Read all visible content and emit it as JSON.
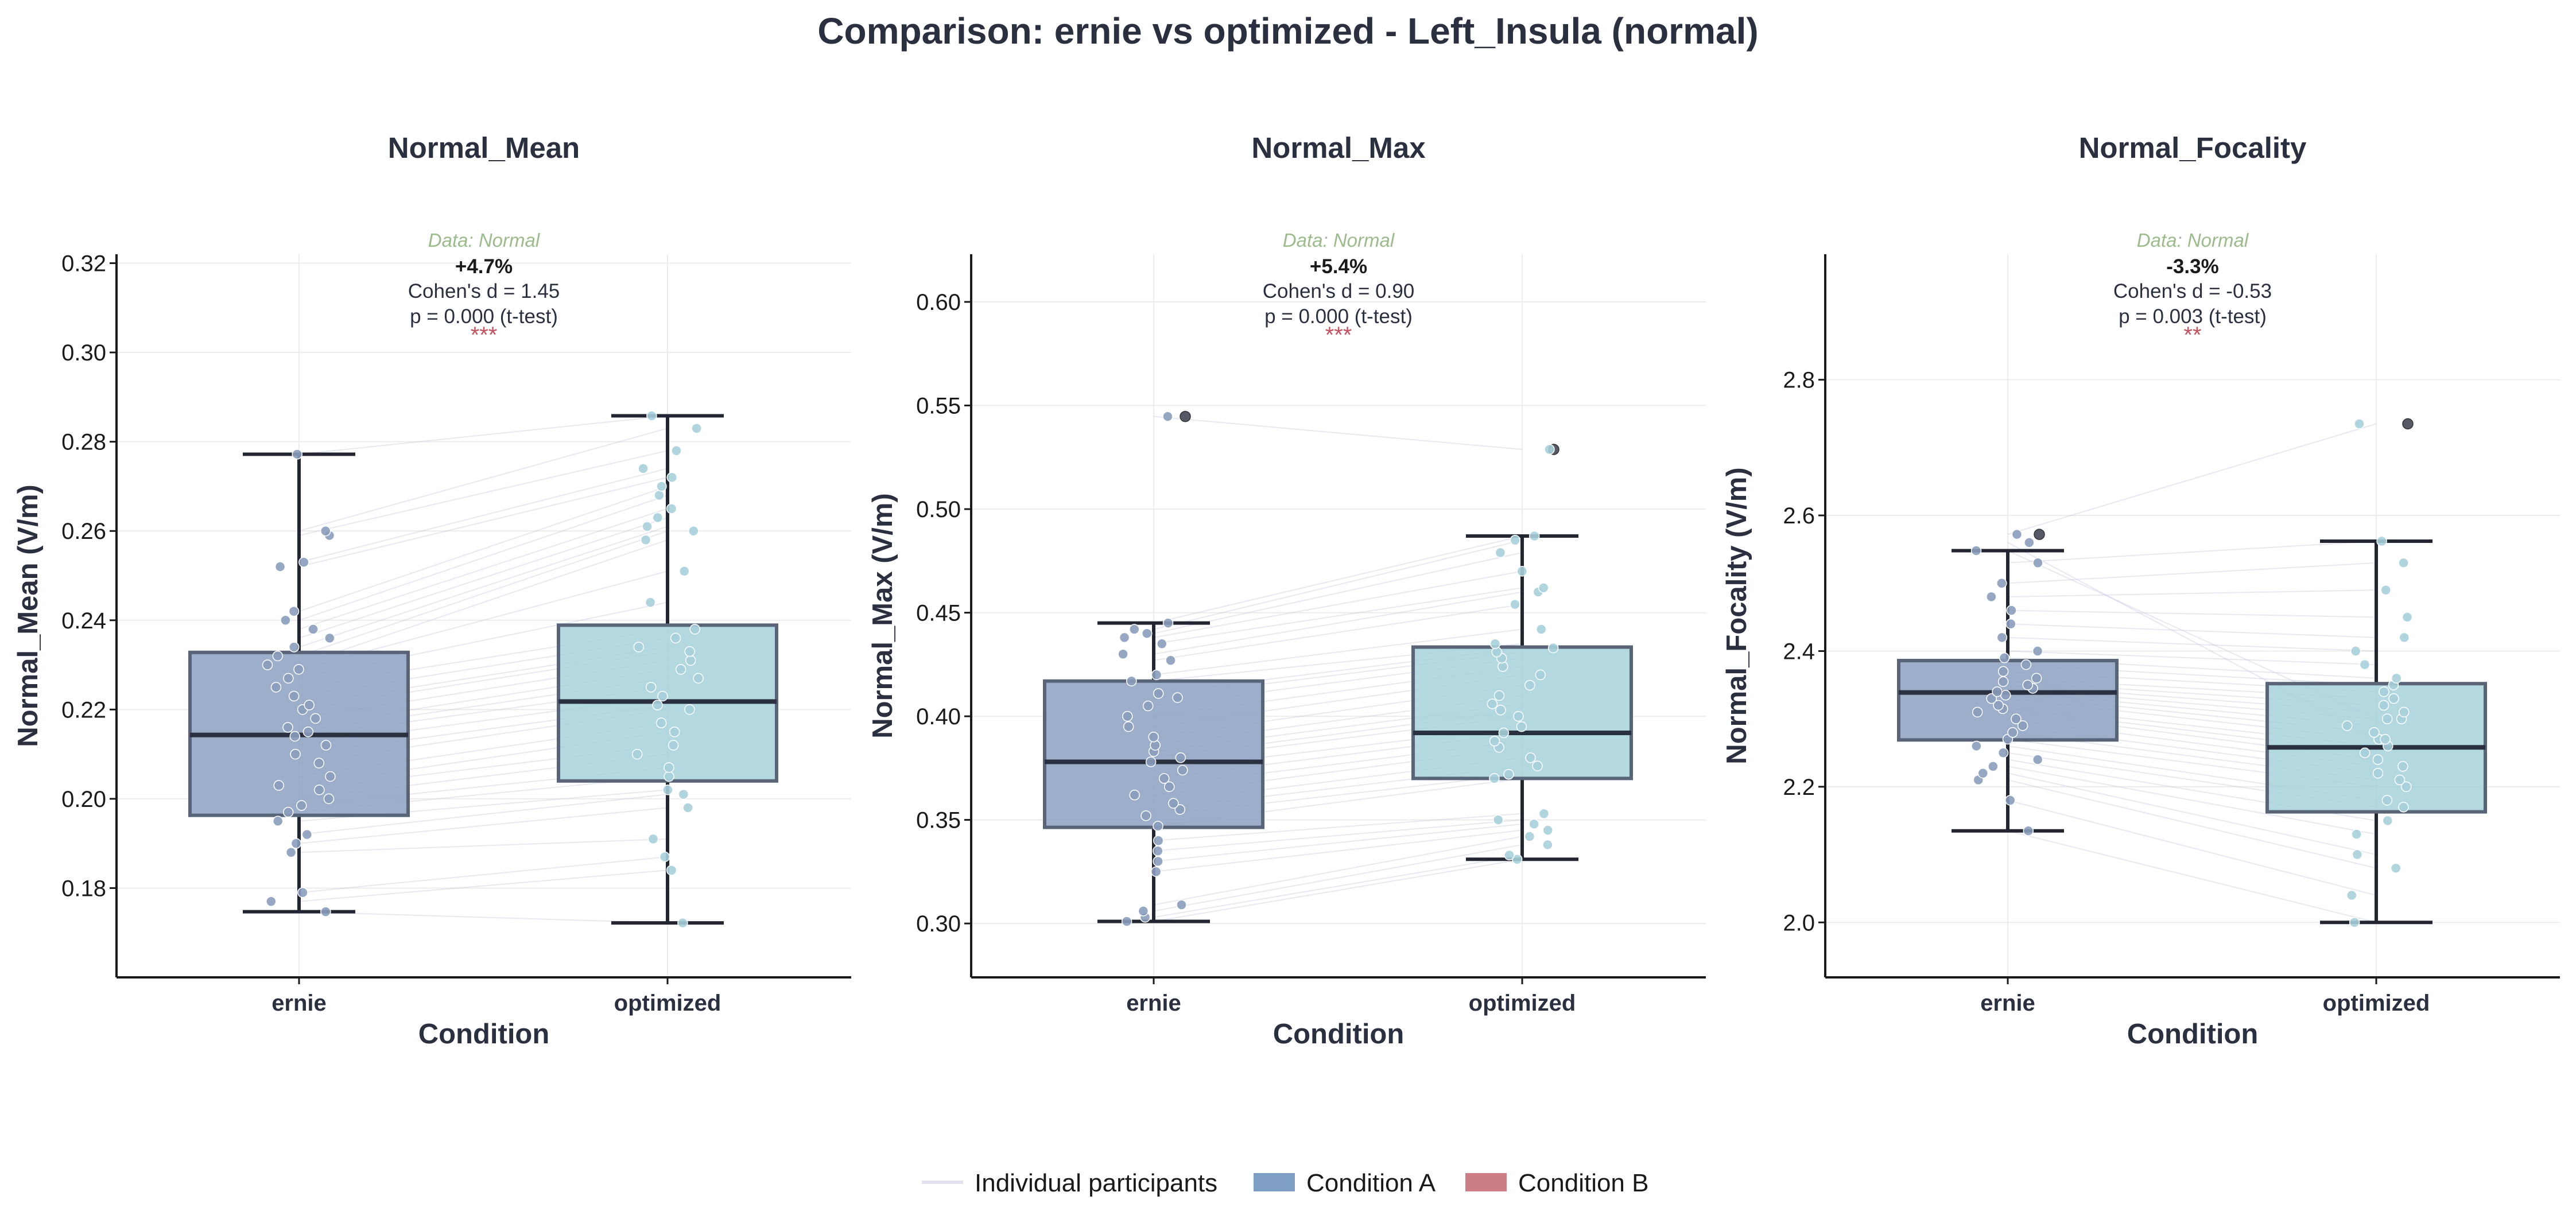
{
  "figure": {
    "title": "Comparison: ernie vs optimized - Left_Insula (normal)"
  },
  "colors": {
    "condition_a": "#8fa3c3",
    "condition_b": "#a9d3dc",
    "condition_a_edge": "#5a6478",
    "condition_b_edge": "#5a6478",
    "pair_line": "#c9cde0",
    "median": "#2b3040",
    "sig": "#c6525e",
    "data_source": "#9cbb8b",
    "legend_line": "#e2e2ee",
    "legend_a": "#7f9ec4",
    "legend_b": "#cd7d86"
  },
  "legend": {
    "items": [
      {
        "label": "Individual participants",
        "kind": "line",
        "color": "#e2e2ee"
      },
      {
        "label": "Condition A",
        "kind": "patch",
        "color": "#7f9ec4"
      },
      {
        "label": "Condition B",
        "kind": "patch",
        "color": "#cd7d86"
      }
    ]
  },
  "chart_data": [
    {
      "type": "box",
      "title": "Normal_Mean",
      "xlabel": "Condition",
      "ylabel": "Normal_Mean (V/m)",
      "categories": [
        "ernie",
        "optimized"
      ],
      "ylim": [
        0.16,
        0.322
      ],
      "yticks": [
        0.18,
        0.2,
        0.22,
        0.24,
        0.26,
        0.28,
        0.3,
        0.32
      ],
      "tick_decimals": 2,
      "stats": {
        "data_source": "Data: Normal",
        "percent_change": "+4.7%",
        "effect_size": "Cohen's d = 1.45",
        "p_value": "p = 0.000 (t-test)",
        "significance": "***"
      },
      "boxes": [
        {
          "name": "ernie",
          "q1": 0.1963,
          "median": 0.2143,
          "q3": 0.2328,
          "whisker_low": 0.1747,
          "whisker_high": 0.2772,
          "outliers": []
        },
        {
          "name": "optimized",
          "q1": 0.204,
          "median": 0.2218,
          "q3": 0.2389,
          "whisker_low": 0.1722,
          "whisker_high": 0.2858,
          "outliers": []
        }
      ],
      "participants": {
        "ernie": [
          0.1747,
          0.177,
          0.179,
          0.188,
          0.19,
          0.192,
          0.195,
          0.197,
          0.1985,
          0.2,
          0.202,
          0.203,
          0.205,
          0.208,
          0.21,
          0.212,
          0.214,
          0.215,
          0.216,
          0.218,
          0.22,
          0.221,
          0.223,
          0.225,
          0.227,
          0.229,
          0.23,
          0.232,
          0.234,
          0.236,
          0.238,
          0.24,
          0.242,
          0.252,
          0.253,
          0.259,
          0.26,
          0.2772
        ],
        "optimized": [
          0.1722,
          0.184,
          0.187,
          0.191,
          0.198,
          0.201,
          0.202,
          0.205,
          0.207,
          0.21,
          0.212,
          0.215,
          0.217,
          0.22,
          0.221,
          0.223,
          0.225,
          0.227,
          0.229,
          0.231,
          0.233,
          0.234,
          0.236,
          0.238,
          0.244,
          0.251,
          0.258,
          0.26,
          0.261,
          0.263,
          0.265,
          0.268,
          0.27,
          0.272,
          0.274,
          0.278,
          0.283,
          0.2858
        ]
      }
    },
    {
      "type": "box",
      "title": "Normal_Max",
      "xlabel": "Condition",
      "ylabel": "Normal_Max (V/m)",
      "categories": [
        "ernie",
        "optimized"
      ],
      "ylim": [
        0.274,
        0.623
      ],
      "yticks": [
        0.3,
        0.35,
        0.4,
        0.45,
        0.5,
        0.55,
        0.6
      ],
      "tick_decimals": 2,
      "stats": {
        "data_source": "Data: Normal",
        "percent_change": "+5.4%",
        "effect_size": "Cohen's d = 0.90",
        "p_value": "p = 0.000 (t-test)",
        "significance": "***"
      },
      "boxes": [
        {
          "name": "ernie",
          "q1": 0.3464,
          "median": 0.378,
          "q3": 0.417,
          "whisker_low": 0.301,
          "whisker_high": 0.445,
          "outliers": [
            0.5447
          ]
        },
        {
          "name": "optimized",
          "q1": 0.37,
          "median": 0.392,
          "q3": 0.4334,
          "whisker_low": 0.331,
          "whisker_high": 0.487,
          "outliers": [
            0.5288
          ]
        }
      ],
      "participants": {
        "ernie": [
          0.301,
          0.303,
          0.306,
          0.309,
          0.325,
          0.33,
          0.335,
          0.34,
          0.347,
          0.352,
          0.355,
          0.358,
          0.362,
          0.366,
          0.37,
          0.374,
          0.378,
          0.38,
          0.383,
          0.386,
          0.39,
          0.395,
          0.4,
          0.405,
          0.409,
          0.411,
          0.417,
          0.42,
          0.427,
          0.43,
          0.435,
          0.438,
          0.44,
          0.442,
          0.445,
          0.5447
        ],
        "optimized": [
          0.331,
          0.333,
          0.338,
          0.342,
          0.345,
          0.348,
          0.35,
          0.353,
          0.37,
          0.372,
          0.376,
          0.38,
          0.385,
          0.388,
          0.392,
          0.395,
          0.4,
          0.403,
          0.406,
          0.41,
          0.415,
          0.42,
          0.424,
          0.428,
          0.431,
          0.433,
          0.435,
          0.442,
          0.454,
          0.46,
          0.462,
          0.47,
          0.479,
          0.485,
          0.487,
          0.5288
        ]
      }
    },
    {
      "type": "box",
      "title": "Normal_Focality",
      "xlabel": "Condition",
      "ylabel": "Normal_Focality (V/m)",
      "categories": [
        "ernie",
        "optimized"
      ],
      "ylim": [
        1.919,
        2.985
      ],
      "yticks": [
        2.0,
        2.2,
        2.4,
        2.6,
        2.8
      ],
      "tick_decimals": 1,
      "stats": {
        "data_source": "Data: Normal",
        "percent_change": "-3.3%",
        "effect_size": "Cohen's d = -0.53",
        "p_value": "p = 0.003 (t-test)",
        "significance": "**"
      },
      "boxes": [
        {
          "name": "ernie",
          "q1": 2.269,
          "median": 2.339,
          "q3": 2.386,
          "whisker_low": 2.135,
          "whisker_high": 2.548,
          "outliers": [
            2.572
          ]
        },
        {
          "name": "optimized",
          "q1": 2.163,
          "median": 2.258,
          "q3": 2.352,
          "whisker_low": 2.0,
          "whisker_high": 2.562,
          "outliers": [
            2.735
          ]
        }
      ],
      "participants": {
        "ernie": [
          2.135,
          2.18,
          2.21,
          2.22,
          2.23,
          2.24,
          2.25,
          2.26,
          2.27,
          2.28,
          2.29,
          2.3,
          2.31,
          2.315,
          2.32,
          2.33,
          2.335,
          2.34,
          2.345,
          2.35,
          2.355,
          2.36,
          2.37,
          2.38,
          2.39,
          2.4,
          2.42,
          2.44,
          2.46,
          2.48,
          2.5,
          2.53,
          2.548,
          2.56,
          2.572
        ],
        "optimized": [
          2.0,
          2.04,
          2.08,
          2.1,
          2.13,
          2.15,
          2.17,
          2.18,
          2.2,
          2.21,
          2.22,
          2.23,
          2.24,
          2.25,
          2.26,
          2.27,
          2.28,
          2.29,
          2.3,
          2.31,
          2.32,
          2.33,
          2.34,
          2.35,
          2.36,
          2.38,
          2.4,
          2.42,
          2.45,
          2.49,
          2.53,
          2.562,
          2.3,
          2.27,
          2.735
        ]
      }
    }
  ]
}
